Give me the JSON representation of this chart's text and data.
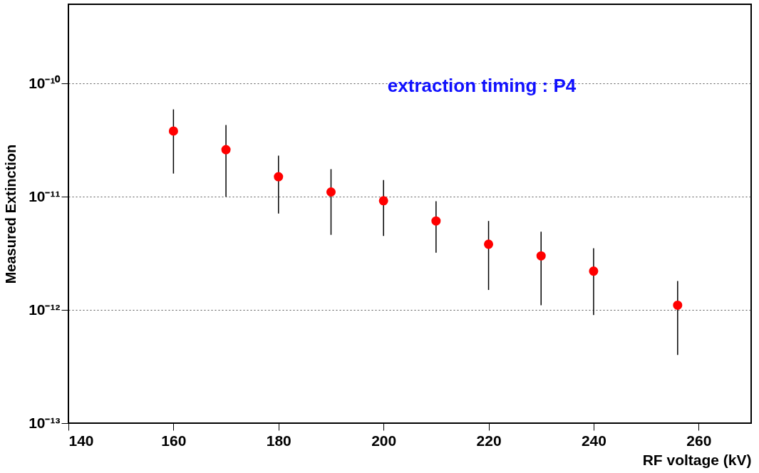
{
  "chart_data": {
    "type": "scatter",
    "xlabel": "RF voltage (kV)",
    "ylabel": "Measured Extinction",
    "annotations": [
      "extraction timing : P4"
    ],
    "x": [
      160,
      170,
      180,
      190,
      200,
      210,
      220,
      230,
      240,
      256
    ],
    "series": [
      {
        "color": "#ff0000",
        "values": [
          3.8e-11,
          2.6e-11,
          1.5e-11,
          1.1e-11,
          9.2e-12,
          6.1e-12,
          3.8e-12,
          3e-12,
          2.2e-12,
          1.1e-12
        ],
        "errors": [
          [
            1.6e-11,
            5.9e-11
          ],
          [
            1e-11,
            4.3e-11
          ],
          [
            7.1e-12,
            2.3e-11
          ],
          [
            4.6e-12,
            1.75e-11
          ],
          [
            4.5e-12,
            1.4e-11
          ],
          [
            3.2e-12,
            9.1e-12
          ],
          [
            1.5e-12,
            6.1e-12
          ],
          [
            1.1e-12,
            4.9e-12
          ],
          [
            9e-13,
            3.5e-12
          ],
          [
            4e-13,
            1.8e-12
          ]
        ]
      }
    ],
    "xlim": [
      140,
      270
    ],
    "xticks": [
      140,
      160,
      180,
      200,
      220,
      240,
      260
    ],
    "ylim": [
      1e-13,
      5e-10
    ],
    "yticks": [
      {
        "value": 1e-13,
        "label": "10⁻¹³"
      },
      {
        "value": 1e-12,
        "label": "10⁻¹²"
      },
      {
        "value": 1e-11,
        "label": "10⁻¹¹"
      },
      {
        "value": 1e-10,
        "label": "10⁻¹⁰"
      }
    ],
    "log": "y",
    "grid": "y",
    "marker": "circle"
  }
}
